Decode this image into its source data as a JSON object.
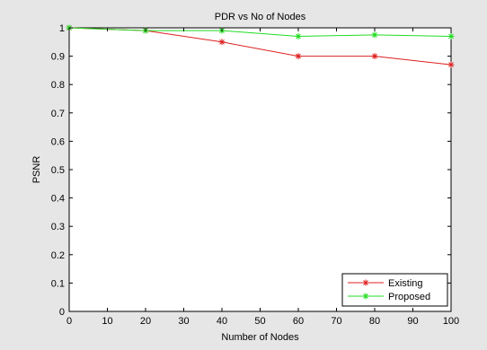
{
  "chart_data": {
    "type": "line",
    "title": "PDR vs No of Nodes",
    "xlabel": "Number of Nodes",
    "ylabel": "PSNR",
    "xlim": [
      0,
      100
    ],
    "ylim": [
      0,
      1
    ],
    "xticks": [
      "0",
      "10",
      "20",
      "30",
      "40",
      "50",
      "60",
      "70",
      "80",
      "90",
      "100"
    ],
    "yticks": [
      "0",
      "0.1",
      "0.2",
      "0.3",
      "0.4",
      "0.5",
      "0.6",
      "0.7",
      "0.8",
      "0.9",
      "1"
    ],
    "grid": false,
    "legend_position": "bottom-right",
    "x": [
      0,
      20,
      40,
      60,
      80,
      100
    ],
    "series": [
      {
        "name": "Existing",
        "color": "#dd2020",
        "marker": "asterisk",
        "values": [
          1.0,
          0.99,
          0.95,
          0.9,
          0.9,
          0.87
        ]
      },
      {
        "name": "Proposed",
        "color": "#22dd22",
        "marker": "asterisk",
        "values": [
          1.0,
          0.99,
          0.99,
          0.97,
          0.975,
          0.97
        ]
      }
    ]
  }
}
